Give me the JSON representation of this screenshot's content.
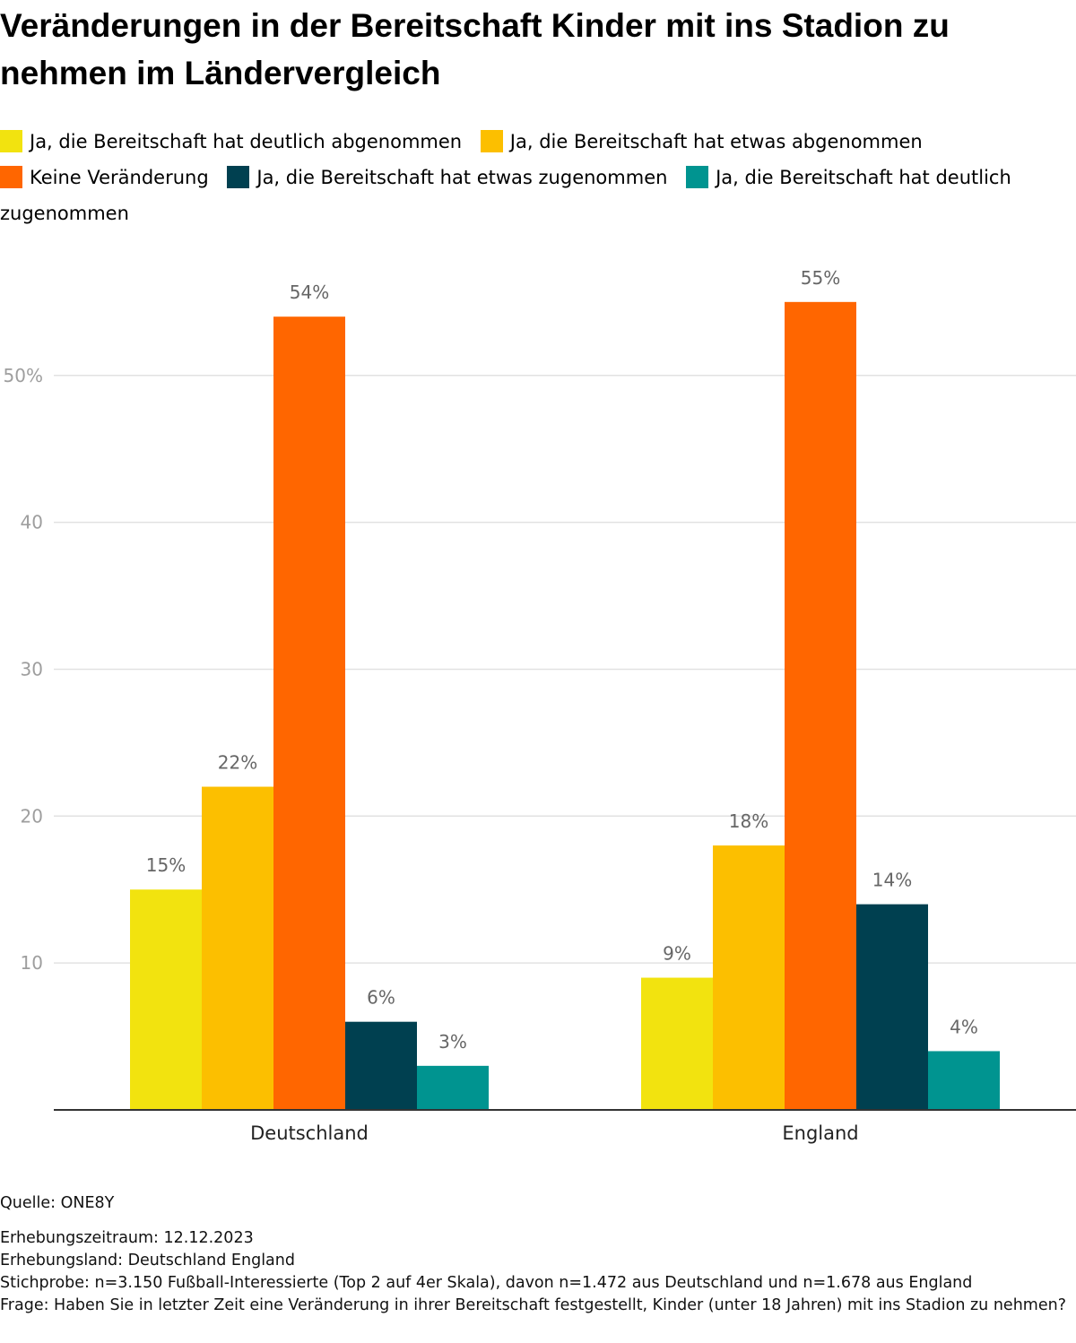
{
  "title": "Veränderungen in der Bereitschaft Kinder mit ins Stadion zu nehmen im Ländervergleich",
  "chart_data": {
    "type": "bar",
    "title": "Veränderungen in der Bereitschaft Kinder mit ins Stadion zu nehmen im Ländervergleich",
    "xlabel": "",
    "ylabel": "",
    "ylim": [
      0,
      55
    ],
    "yticks": [
      10,
      20,
      30,
      40,
      50
    ],
    "ytick_labels": [
      "10",
      "20",
      "30",
      "40",
      "50%"
    ],
    "grid": true,
    "legend_position": "top",
    "categories": [
      "Deutschland",
      "England"
    ],
    "series": [
      {
        "name": "Ja, die Bereitschaft hat deutlich abgenommen",
        "color": "#f2e30f",
        "values": [
          15,
          9
        ],
        "labels": [
          "15%",
          "9%"
        ]
      },
      {
        "name": "Ja, die Bereitschaft hat etwas abgenommen",
        "color": "#fcbf00",
        "values": [
          22,
          18
        ],
        "labels": [
          "22%",
          "18%"
        ]
      },
      {
        "name": "Keine Veränderung",
        "color": "#ff6600",
        "values": [
          54,
          55
        ],
        "labels": [
          "54%",
          "55%"
        ]
      },
      {
        "name": "Ja, die Bereitschaft hat etwas zugenommen",
        "color": "#004050",
        "values": [
          6,
          14
        ],
        "labels": [
          "6%",
          "14%"
        ]
      },
      {
        "name": "Ja, die Bereitschaft hat deutlich zugenommen",
        "color": "#009490",
        "values": [
          3,
          4
        ],
        "labels": [
          "3%",
          "4%"
        ]
      }
    ]
  },
  "footer": {
    "source": "Quelle: ONE8Y",
    "period": "Erhebungszeitraum: 12.12.2023",
    "country": "Erhebungsland: Deutschland England",
    "sample": "Stichprobe: n=3.150 Fußball-Interessierte (Top 2 auf 4er Skala), davon n=1.472 aus Deutschland und n=1.678 aus England",
    "question": "Frage: Haben Sie in letzter Zeit eine Veränderung in ihrer Bereitschaft festgestellt, Kinder (unter 18 Jahren) mit ins Stadion zu nehmen?"
  }
}
